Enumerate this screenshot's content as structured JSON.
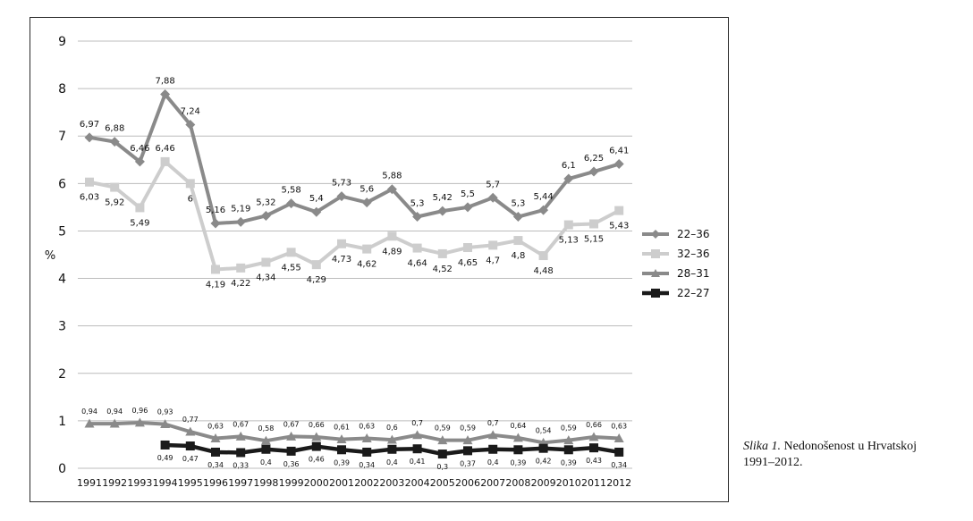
{
  "chart_data": {
    "type": "line",
    "title": "",
    "xlabel": "",
    "ylabel": "%",
    "ylim": [
      0,
      9
    ],
    "yticks": [
      "0",
      "1",
      "2",
      "3",
      "4",
      "5",
      "6",
      "7",
      "8",
      "9"
    ],
    "categories": [
      "1991",
      "1992",
      "1993",
      "1994",
      "1995",
      "1996",
      "1997",
      "1998",
      "1999",
      "2000",
      "2001",
      "2002",
      "2003",
      "2004",
      "2005",
      "2006",
      "2007",
      "2008",
      "2009",
      "2010",
      "2011",
      "2012"
    ],
    "grid": "horizontal",
    "legend_position": "right",
    "series": [
      {
        "name": "22–36",
        "color": "#8a8a8a",
        "marker": "diamond",
        "values": [
          6.97,
          6.88,
          6.46,
          7.88,
          7.24,
          5.16,
          5.19,
          5.32,
          5.58,
          5.4,
          5.73,
          5.6,
          5.88,
          5.3,
          5.42,
          5.5,
          5.7,
          5.3,
          5.44,
          6.1,
          6.25,
          6.41
        ],
        "labels": [
          "6,97",
          "6,88",
          "6,46",
          "7,88",
          "7,24",
          "5,16",
          "5,19",
          "5,32",
          "5,58",
          "5,4",
          "5,73",
          "5,6",
          "5,88",
          "5,3",
          "5,42",
          "5,5",
          "5,7",
          "5,3",
          "5,44",
          "6,1",
          "6,25",
          "6,41"
        ]
      },
      {
        "name": "32–36",
        "color": "#cdcdcd",
        "marker": "square",
        "values": [
          6.03,
          5.92,
          5.49,
          6.46,
          6.0,
          4.19,
          4.22,
          4.34,
          4.55,
          4.29,
          4.73,
          4.62,
          4.89,
          4.64,
          4.52,
          4.65,
          4.7,
          4.8,
          4.48,
          5.13,
          5.15,
          5.43
        ],
        "labels": [
          "6,03",
          "5,92",
          "5,49",
          "6,46",
          "6",
          "4,19",
          "4,22",
          "4,34",
          "4,55",
          "4,29",
          "4,73",
          "4,62",
          "4,89",
          "4,64",
          "4,52",
          "4,65",
          "4,7",
          "4,8",
          "4,48",
          "5,13",
          "5,15",
          "5,43"
        ]
      },
      {
        "name": "28–31",
        "color": "#8a8a8a",
        "marker": "triangle",
        "values": [
          0.94,
          0.94,
          0.96,
          0.93,
          0.77,
          0.63,
          0.67,
          0.58,
          0.67,
          0.66,
          0.61,
          0.63,
          0.6,
          0.7,
          0.59,
          0.59,
          0.7,
          0.64,
          0.54,
          0.59,
          0.66,
          0.63
        ],
        "labels": [
          "0,94",
          "0,94",
          "0,96",
          "0,93",
          "0,77",
          "0,63",
          "0,67",
          "0,58",
          "0,67",
          "0,66",
          "0,61",
          "0,63",
          "0,6",
          "0,7",
          "0,59",
          "0,59",
          "0,7",
          "0,64",
          "0,54",
          "0,59",
          "0,66",
          "0,63"
        ]
      },
      {
        "name": "22–27",
        "color": "#1a1a1a",
        "marker": "square",
        "values": [
          null,
          null,
          null,
          0.49,
          0.47,
          0.34,
          0.33,
          0.4,
          0.36,
          0.46,
          0.39,
          0.34,
          0.4,
          0.41,
          0.3,
          0.37,
          0.4,
          0.39,
          0.42,
          0.39,
          0.43,
          0.34
        ],
        "labels": [
          "",
          "",
          "",
          "0,49",
          "0,47",
          "0,34",
          "0,33",
          "0,4",
          "0,36",
          "0,46",
          "0,39",
          "0,34",
          "0,4",
          "0,41",
          "0,3",
          "0,37",
          "0,4",
          "0,39",
          "0,42",
          "0,39",
          "0,43",
          "0,34"
        ]
      }
    ]
  },
  "caption": {
    "italic": "Slika 1.",
    "text": " Nedonošenost u Hrvatskoj",
    "line2": "1991–2012."
  }
}
